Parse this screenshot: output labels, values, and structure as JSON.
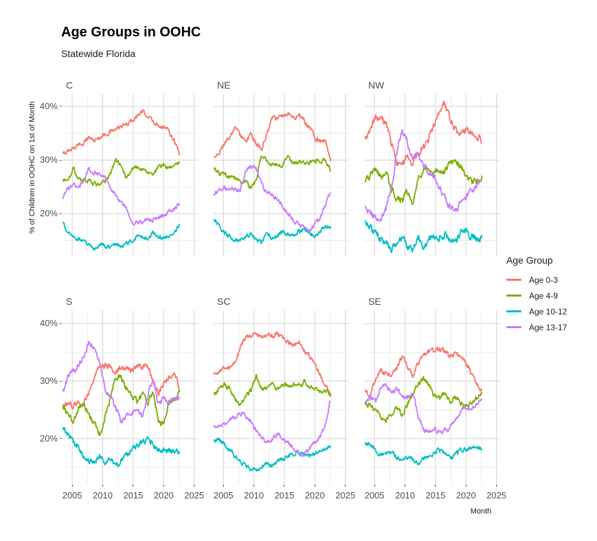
{
  "chart_data": {
    "type": "line",
    "title": "Age Groups in OOHC",
    "subtitle": "Statewide Florida",
    "xlabel": "Month",
    "ylabel": "% of Children in OOHC on 1st of Month",
    "legend_title": "Age Group",
    "legend_position": "right",
    "grid": true,
    "x_axis": {
      "ticks": [
        2005,
        2010,
        2015,
        2020,
        2025
      ],
      "minor_ticks": [
        2007.5,
        2012.5,
        2017.5,
        2022.5
      ],
      "domain": [
        2003.4,
        2025.6
      ]
    },
    "y_axis": {
      "ticks": [
        20,
        30,
        40
      ],
      "tick_labels": [
        "20%",
        "30%",
        "40%"
      ],
      "minor_ticks": [
        15,
        25,
        35
      ],
      "domain": [
        12,
        42.3
      ]
    },
    "data_x_span": [
      2003.4,
      2022.6
    ],
    "series_meta": [
      {
        "key": "age_0_3",
        "label": "Age 0-3",
        "color": "#F8766D"
      },
      {
        "key": "age_4_9",
        "label": "Age 4-9",
        "color": "#7CAE00"
      },
      {
        "key": "age_10_12",
        "label": "Age 10-12",
        "color": "#00BFC4"
      },
      {
        "key": "age_13_17",
        "label": "Age 13-17",
        "color": "#C77CFF"
      }
    ],
    "facets": [
      {
        "label": "C",
        "volatility": 0.32,
        "series": {
          "age_0_3": [
            31.0,
            31.7,
            32.3,
            32.7,
            33.3,
            34.3,
            33.6,
            34.3,
            34.8,
            35.3,
            35.6,
            36.3,
            36.6,
            37.3,
            38.2,
            39.0,
            38.3,
            37.2,
            36.5,
            36.2,
            35.5,
            33.8,
            31.0
          ],
          "age_4_9": [
            26.5,
            26.0,
            28.5,
            26.5,
            26.3,
            26.3,
            25.6,
            25.3,
            26.0,
            27.5,
            30.3,
            28.7,
            26.8,
            28.3,
            28.6,
            28.3,
            27.6,
            27.4,
            28.8,
            29.0,
            28.6,
            29.3,
            29.3
          ],
          "age_10_12": [
            18.6,
            16.8,
            15.8,
            15.3,
            15.0,
            14.2,
            13.5,
            14.3,
            14.0,
            13.8,
            14.3,
            14.0,
            14.5,
            15.0,
            15.5,
            15.8,
            15.5,
            16.3,
            15.8,
            15.3,
            15.8,
            16.2,
            18.0
          ],
          "age_13_17": [
            22.7,
            24.8,
            25.3,
            24.7,
            26.3,
            28.3,
            27.8,
            27.5,
            26.8,
            25.0,
            23.3,
            22.0,
            21.3,
            18.3,
            18.6,
            18.3,
            19.0,
            18.8,
            19.3,
            19.6,
            20.5,
            20.8,
            21.8
          ]
        }
      },
      {
        "label": "NE",
        "volatility": 0.35,
        "series": {
          "age_0_3": [
            30.3,
            31.5,
            33.0,
            34.3,
            35.8,
            34.8,
            33.4,
            34.8,
            32.8,
            32.3,
            34.8,
            38.0,
            37.5,
            38.3,
            38.8,
            37.8,
            38.3,
            37.3,
            36.3,
            34.3,
            33.3,
            33.8,
            29.8
          ],
          "age_4_9": [
            28.3,
            27.6,
            27.2,
            26.8,
            26.6,
            26.2,
            25.8,
            24.8,
            26.0,
            31.0,
            30.0,
            29.3,
            29.0,
            29.3,
            30.5,
            29.3,
            29.5,
            29.3,
            29.5,
            29.8,
            30.0,
            29.8,
            28.2
          ],
          "age_10_12": [
            19.3,
            17.8,
            16.5,
            15.8,
            15.3,
            15.0,
            15.5,
            16.3,
            15.2,
            14.9,
            16.3,
            15.5,
            16.0,
            16.6,
            16.0,
            16.3,
            16.8,
            17.0,
            16.3,
            15.9,
            16.5,
            17.8,
            17.3
          ],
          "age_13_17": [
            23.8,
            24.3,
            24.8,
            24.3,
            24.6,
            24.3,
            27.8,
            28.8,
            28.3,
            25.3,
            24.0,
            23.5,
            22.8,
            21.3,
            19.8,
            18.8,
            18.3,
            17.3,
            16.8,
            17.8,
            19.3,
            21.5,
            24.3
          ]
        }
      },
      {
        "label": "NW",
        "volatility": 0.55,
        "series": {
          "age_0_3": [
            33.4,
            35.8,
            37.8,
            37.9,
            36.8,
            33.3,
            29.3,
            28.6,
            30.8,
            29.5,
            31.0,
            32.5,
            34.0,
            36.5,
            39.5,
            40.3,
            37.5,
            35.5,
            34.6,
            35.6,
            35.2,
            34.6,
            33.6
          ],
          "age_4_9": [
            26.4,
            27.2,
            28.2,
            27.0,
            27.6,
            24.2,
            23.2,
            22.2,
            24.0,
            22.0,
            26.3,
            28.3,
            28.4,
            27.8,
            28.0,
            28.3,
            29.3,
            29.8,
            28.8,
            26.8,
            25.8,
            26.0,
            27.0
          ],
          "age_10_12": [
            18.6,
            17.3,
            16.4,
            15.0,
            14.4,
            13.6,
            14.6,
            15.5,
            14.2,
            13.5,
            15.9,
            13.9,
            15.4,
            15.9,
            15.4,
            16.4,
            15.2,
            14.4,
            16.4,
            16.8,
            15.9,
            15.4,
            15.2
          ],
          "age_13_17": [
            21.3,
            20.3,
            19.4,
            19.2,
            20.8,
            25.3,
            31.3,
            35.8,
            33.3,
            30.3,
            31.8,
            28.8,
            28.3,
            26.8,
            25.3,
            23.0,
            21.3,
            20.5,
            21.8,
            23.0,
            24.3,
            25.3,
            26.6
          ]
        }
      },
      {
        "label": "S",
        "volatility": 0.42,
        "series": {
          "age_0_3": [
            25.4,
            26.2,
            25.8,
            26.4,
            26.2,
            28.0,
            30.8,
            32.6,
            32.8,
            32.4,
            31.4,
            32.6,
            32.4,
            31.6,
            32.4,
            32.6,
            32.4,
            30.2,
            27.8,
            29.8,
            30.8,
            31.4,
            28.9
          ],
          "age_4_9": [
            25.7,
            24.3,
            23.1,
            25.4,
            25.9,
            24.1,
            22.4,
            20.8,
            23.9,
            26.9,
            30.4,
            30.9,
            28.9,
            27.4,
            26.4,
            27.9,
            26.3,
            27.9,
            23.4,
            22.4,
            26.4,
            26.9,
            28.1
          ],
          "age_10_12": [
            21.8,
            20.8,
            19.8,
            18.3,
            16.9,
            16.1,
            15.8,
            17.0,
            15.9,
            16.4,
            15.1,
            16.2,
            16.9,
            18.1,
            18.9,
            19.4,
            19.9,
            18.9,
            18.3,
            17.9,
            17.9,
            17.7,
            17.5
          ],
          "age_13_17": [
            28.0,
            30.6,
            31.9,
            32.4,
            34.4,
            36.9,
            35.4,
            32.9,
            28.4,
            27.4,
            25.4,
            22.9,
            23.9,
            24.4,
            24.9,
            23.9,
            27.4,
            30.4,
            25.9,
            26.9,
            26.4,
            26.9,
            27.4
          ]
        }
      },
      {
        "label": "SC",
        "volatility": 0.32,
        "series": {
          "age_0_3": [
            31.3,
            31.8,
            32.3,
            32.1,
            33.3,
            35.8,
            37.4,
            37.9,
            38.2,
            37.7,
            38.2,
            37.9,
            38.2,
            37.4,
            36.6,
            36.2,
            36.6,
            35.4,
            34.4,
            32.9,
            31.1,
            29.4,
            27.3
          ],
          "age_4_9": [
            27.7,
            28.6,
            29.2,
            28.8,
            26.8,
            25.9,
            27.2,
            28.4,
            30.9,
            28.4,
            28.9,
            29.3,
            28.7,
            29.5,
            29.2,
            29.3,
            29.1,
            29.8,
            29.3,
            28.6,
            28.1,
            28.4,
            27.9
          ],
          "age_10_12": [
            19.7,
            20.0,
            19.0,
            18.0,
            17.0,
            16.0,
            15.3,
            14.8,
            14.6,
            14.9,
            15.6,
            15.3,
            16.0,
            16.5,
            17.0,
            17.3,
            17.6,
            17.5,
            17.0,
            17.4,
            17.9,
            18.4,
            18.8
          ],
          "age_13_17": [
            22.4,
            22.0,
            22.6,
            23.4,
            23.9,
            24.4,
            23.9,
            23.0,
            21.4,
            20.4,
            19.5,
            20.0,
            20.9,
            20.0,
            19.3,
            18.4,
            17.6,
            17.3,
            18.4,
            19.4,
            20.4,
            22.4,
            26.8
          ]
        }
      },
      {
        "label": "SE",
        "volatility": 0.35,
        "series": {
          "age_0_3": [
            28.8,
            27.2,
            30.3,
            31.9,
            31.3,
            30.9,
            32.4,
            34.2,
            32.6,
            30.9,
            33.1,
            34.4,
            34.9,
            35.2,
            35.5,
            35.2,
            34.4,
            34.7,
            34.2,
            33.4,
            31.4,
            29.9,
            28.4
          ],
          "age_4_9": [
            26.2,
            25.7,
            25.0,
            23.8,
            23.1,
            24.4,
            25.4,
            24.1,
            25.9,
            27.9,
            29.4,
            30.6,
            29.4,
            27.4,
            27.1,
            27.9,
            26.4,
            27.4,
            26.1,
            25.7,
            26.4,
            26.9,
            28.1
          ],
          "age_10_12": [
            19.0,
            19.3,
            17.9,
            17.3,
            17.3,
            17.8,
            16.6,
            16.6,
            16.8,
            16.4,
            15.4,
            16.6,
            16.9,
            17.4,
            18.0,
            17.6,
            16.6,
            17.4,
            17.9,
            18.3,
            18.1,
            18.6,
            18.2
          ],
          "age_13_17": [
            26.6,
            27.1,
            26.3,
            28.6,
            29.4,
            27.6,
            28.6,
            27.6,
            27.1,
            27.9,
            24.1,
            21.9,
            20.9,
            21.9,
            20.9,
            21.4,
            21.9,
            23.3,
            24.9,
            25.4,
            25.1,
            25.9,
            27.1
          ]
        }
      }
    ]
  }
}
